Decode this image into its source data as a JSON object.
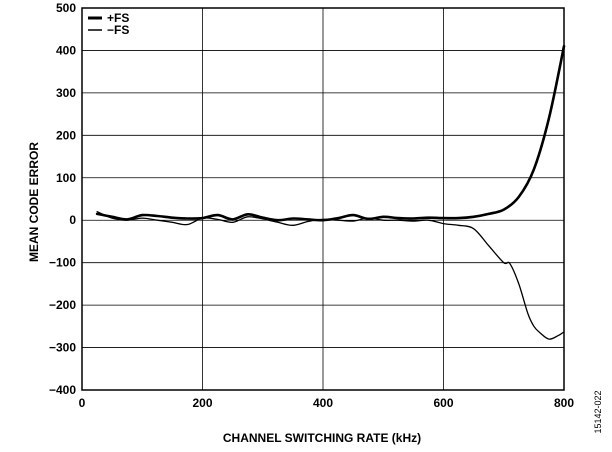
{
  "chart_data": {
    "type": "line",
    "title": "",
    "xlabel": "CHANNEL SWITCHING RATE  (kHz)",
    "ylabel": "MEAN CODE ERROR",
    "xlim": [
      0,
      800
    ],
    "ylim": [
      -400,
      500
    ],
    "xticks": [
      0,
      200,
      400,
      600,
      800
    ],
    "yticks": [
      500,
      400,
      300,
      200,
      100,
      0,
      -100,
      -200,
      -300,
      -400
    ],
    "ytick_labels": [
      "500",
      "400",
      "300",
      "200",
      "100",
      "0",
      "−100",
      "−200",
      "−300",
      "−400"
    ],
    "grid": true,
    "legend_position": "top-left",
    "figure_id": "15142-022",
    "series": [
      {
        "name": "+FS",
        "color": "#000000",
        "weight": "heavy",
        "x": [
          25,
          50,
          75,
          100,
          125,
          150,
          175,
          200,
          225,
          250,
          275,
          300,
          325,
          350,
          375,
          400,
          425,
          450,
          475,
          500,
          525,
          550,
          575,
          600,
          625,
          650,
          675,
          700,
          725,
          750,
          775,
          800
        ],
        "y": [
          15,
          8,
          2,
          12,
          10,
          6,
          4,
          5,
          12,
          2,
          14,
          6,
          0,
          4,
          2,
          0,
          5,
          12,
          3,
          8,
          5,
          4,
          6,
          5,
          5,
          8,
          15,
          25,
          55,
          120,
          240,
          410
        ]
      },
      {
        "name": "−FS",
        "color": "#000000",
        "weight": "light",
        "x": [
          25,
          50,
          75,
          100,
          125,
          150,
          175,
          200,
          225,
          250,
          275,
          300,
          325,
          350,
          375,
          400,
          425,
          450,
          475,
          500,
          525,
          550,
          575,
          600,
          625,
          650,
          675,
          700,
          710,
          725,
          740,
          750,
          760,
          775,
          790,
          800
        ],
        "y": [
          20,
          5,
          0,
          5,
          0,
          -5,
          -10,
          5,
          2,
          -5,
          8,
          3,
          -5,
          -12,
          -3,
          2,
          0,
          -2,
          5,
          0,
          0,
          -2,
          0,
          -8,
          -12,
          -20,
          -60,
          -100,
          -102,
          -150,
          -220,
          -250,
          -265,
          -280,
          -272,
          -263
        ]
      }
    ]
  }
}
